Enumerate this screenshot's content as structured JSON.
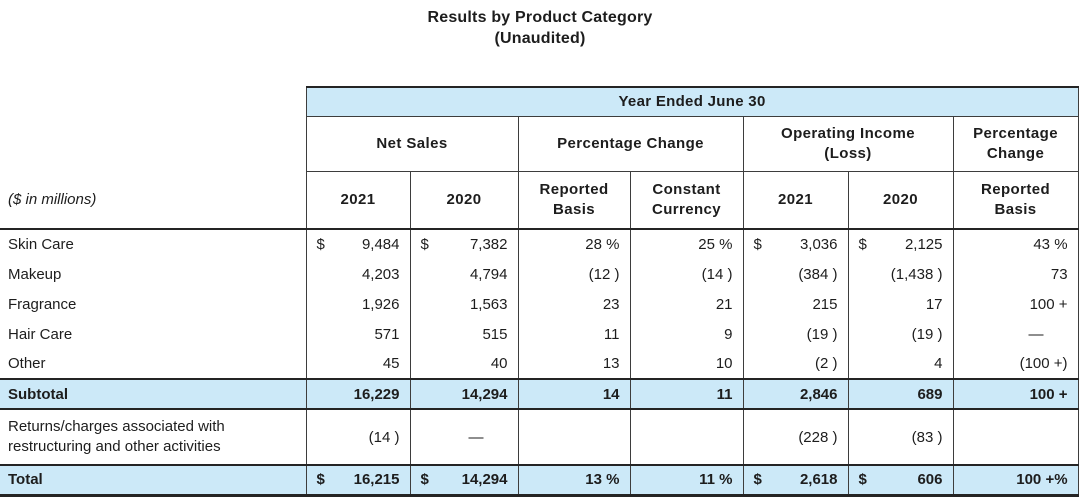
{
  "title": {
    "line1": "Results by Product Category",
    "line2": "(Unaudited)"
  },
  "colors": {
    "band_blue": "#cce9f8",
    "border_thin": "#3d3d3d",
    "border_thick": "#242424",
    "text": "#1d1d1d"
  },
  "table": {
    "span_header": "Year Ended June 30",
    "unit_note": "($ in millions)",
    "groups": [
      {
        "label": "Net Sales"
      },
      {
        "label": "Percentage Change"
      },
      {
        "label": "Operating Income (Loss)"
      },
      {
        "label": "Percentage Change"
      }
    ],
    "columns": [
      "2021",
      "2020",
      "Reported Basis",
      "Constant Currency",
      "2021",
      "2020",
      "Reported Basis"
    ],
    "rows": [
      {
        "label": "Skin Care",
        "style": "normal",
        "cells": [
          {
            "dollar": "$",
            "value": "9,484"
          },
          {
            "dollar": "$",
            "value": "7,382"
          },
          {
            "value": "28 %"
          },
          {
            "value": "25 %"
          },
          {
            "dollar": "$",
            "value": "3,036"
          },
          {
            "dollar": "$",
            "value": "2,125"
          },
          {
            "value": "43 %"
          }
        ]
      },
      {
        "label": "Makeup",
        "style": "normal",
        "cells": [
          {
            "value": "4,203"
          },
          {
            "value": "4,794"
          },
          {
            "value": "(12 )"
          },
          {
            "value": "(14 )"
          },
          {
            "value": "(384 )"
          },
          {
            "value": "(1,438 )"
          },
          {
            "value": "73"
          }
        ]
      },
      {
        "label": "Fragrance",
        "style": "normal",
        "cells": [
          {
            "value": "1,926"
          },
          {
            "value": "1,563"
          },
          {
            "value": "23"
          },
          {
            "value": "21"
          },
          {
            "value": "215"
          },
          {
            "value": "17"
          },
          {
            "value": "100 +"
          }
        ]
      },
      {
        "label": "Hair Care",
        "style": "normal",
        "cells": [
          {
            "value": "571"
          },
          {
            "value": "515"
          },
          {
            "value": "11"
          },
          {
            "value": "9"
          },
          {
            "value": "(19 )"
          },
          {
            "value": "(19 )"
          },
          {
            "value": "—"
          }
        ]
      },
      {
        "label": "Other",
        "style": "normal",
        "cells": [
          {
            "value": "45"
          },
          {
            "value": "40"
          },
          {
            "value": "13"
          },
          {
            "value": "10"
          },
          {
            "value": "(2 )"
          },
          {
            "value": "4"
          },
          {
            "value": "(100 +)"
          }
        ]
      },
      {
        "label": "Subtotal",
        "style": "subtotal",
        "cells": [
          {
            "value": "16,229"
          },
          {
            "value": "14,294"
          },
          {
            "value": "14"
          },
          {
            "value": "11"
          },
          {
            "value": "2,846"
          },
          {
            "value": "689"
          },
          {
            "value": "100 +"
          }
        ]
      },
      {
        "label": "Returns/charges associated with restructuring and other activities",
        "style": "tall",
        "cells": [
          {
            "value": "(14 )"
          },
          {
            "value": "—"
          },
          {
            "value": ""
          },
          {
            "value": ""
          },
          {
            "value": "(228 )"
          },
          {
            "value": "(83 )"
          },
          {
            "value": ""
          }
        ]
      },
      {
        "label": "Total",
        "style": "total",
        "cells": [
          {
            "dollar": "$",
            "value": "16,215"
          },
          {
            "dollar": "$",
            "value": "14,294"
          },
          {
            "value": "13 %"
          },
          {
            "value": "11 %"
          },
          {
            "dollar": "$",
            "value": "2,618"
          },
          {
            "dollar": "$",
            "value": "606"
          },
          {
            "value": "100 +%"
          }
        ]
      }
    ]
  }
}
